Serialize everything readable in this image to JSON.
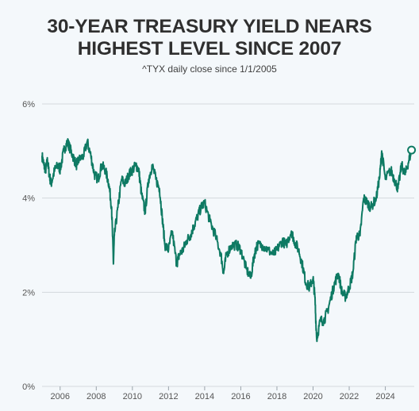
{
  "header": {
    "title_line1": "30-YEAR TREASURY YIELD NEARS",
    "title_line2": "HIGHEST LEVEL SINCE 2007",
    "subtitle": "^TYX daily close since 1/1/2005"
  },
  "colors": {
    "line": "#0e7a63",
    "grid": "#d3d8dd",
    "background": "#f4f8fb"
  },
  "chart_data": {
    "type": "line",
    "title": "30-YEAR TREASURY YIELD NEARS HIGHEST LEVEL SINCE 2007",
    "subtitle": "^TYX daily close since 1/1/2005",
    "xlabel": "",
    "ylabel": "",
    "y_unit": "%",
    "xlim": [
      2005,
      2025.6
    ],
    "ylim": [
      0,
      6
    ],
    "y_ticks": [
      {
        "value": 0,
        "label": "0%"
      },
      {
        "value": 2,
        "label": "2%"
      },
      {
        "value": 4,
        "label": "4%"
      },
      {
        "value": 6,
        "label": "6%"
      }
    ],
    "x_ticks": [
      {
        "value": 2006,
        "label": "2006"
      },
      {
        "value": 2008,
        "label": "2008"
      },
      {
        "value": 2010,
        "label": "2010"
      },
      {
        "value": 2012,
        "label": "2012"
      },
      {
        "value": 2014,
        "label": "2014"
      },
      {
        "value": 2016,
        "label": "2016"
      },
      {
        "value": 2018,
        "label": "2018"
      },
      {
        "value": 2020,
        "label": "2020"
      },
      {
        "value": 2022,
        "label": "2022"
      },
      {
        "value": 2024,
        "label": "2024"
      }
    ],
    "grid": true,
    "endpoint_marker": true,
    "series": [
      {
        "x": [
          2005.0,
          2005.1,
          2005.2,
          2005.3,
          2005.4,
          2005.5,
          2005.7,
          2005.9,
          2006.0,
          2006.2,
          2006.4,
          2006.5,
          2006.7,
          2006.9,
          2007.0,
          2007.3,
          2007.5,
          2007.7,
          2007.9,
          2008.1,
          2008.3,
          2008.5,
          2008.7,
          2008.85,
          2008.95,
          2009.0,
          2009.2,
          2009.4,
          2009.6,
          2009.8,
          2010.0,
          2010.2,
          2010.35,
          2010.5,
          2010.7,
          2010.9,
          2011.1,
          2011.3,
          2011.5,
          2011.65,
          2011.8,
          2012.0,
          2012.2,
          2012.45,
          2012.6,
          2012.8,
          2013.0,
          2013.2,
          2013.4,
          2013.6,
          2013.8,
          2014.0,
          2014.3,
          2014.6,
          2014.9,
          2015.05,
          2015.2,
          2015.5,
          2015.8,
          2016.0,
          2016.3,
          2016.55,
          2016.75,
          2016.9,
          2017.2,
          2017.5,
          2017.8,
          2018.0,
          2018.3,
          2018.5,
          2018.8,
          2018.95,
          2019.2,
          2019.4,
          2019.6,
          2019.8,
          2020.0,
          2020.1,
          2020.2,
          2020.4,
          2020.6,
          2020.8,
          2021.0,
          2021.2,
          2021.4,
          2021.6,
          2021.8,
          2022.0,
          2022.2,
          2022.4,
          2022.6,
          2022.8,
          2023.0,
          2023.2,
          2023.5,
          2023.7,
          2023.8,
          2024.0,
          2024.3,
          2024.5,
          2024.7,
          2024.9,
          2025.1,
          2025.3,
          2025.45
        ],
        "values": [
          4.9,
          4.7,
          4.6,
          4.8,
          4.5,
          4.3,
          4.6,
          4.7,
          4.6,
          5.0,
          5.2,
          5.1,
          4.9,
          4.7,
          4.8,
          4.9,
          5.2,
          4.9,
          4.5,
          4.4,
          4.7,
          4.6,
          4.3,
          3.8,
          2.6,
          3.2,
          3.8,
          4.4,
          4.3,
          4.5,
          4.6,
          4.7,
          4.6,
          4.1,
          3.7,
          4.4,
          4.7,
          4.4,
          4.2,
          3.6,
          3.0,
          2.9,
          3.3,
          2.6,
          2.8,
          2.9,
          3.1,
          3.2,
          3.4,
          3.6,
          3.8,
          3.9,
          3.5,
          3.2,
          2.8,
          2.4,
          2.8,
          3.0,
          3.0,
          2.9,
          2.5,
          2.3,
          2.8,
          3.0,
          3.0,
          2.9,
          2.8,
          2.9,
          3.1,
          3.0,
          3.3,
          3.1,
          2.9,
          2.6,
          2.2,
          2.1,
          2.3,
          1.9,
          1.0,
          1.4,
          1.4,
          1.6,
          1.9,
          2.2,
          2.4,
          2.0,
          1.9,
          2.1,
          2.4,
          3.2,
          3.2,
          4.0,
          3.9,
          3.8,
          4.0,
          4.5,
          5.0,
          4.4,
          4.6,
          4.4,
          4.2,
          4.7,
          4.5,
          4.8,
          5.02
        ]
      }
    ]
  }
}
